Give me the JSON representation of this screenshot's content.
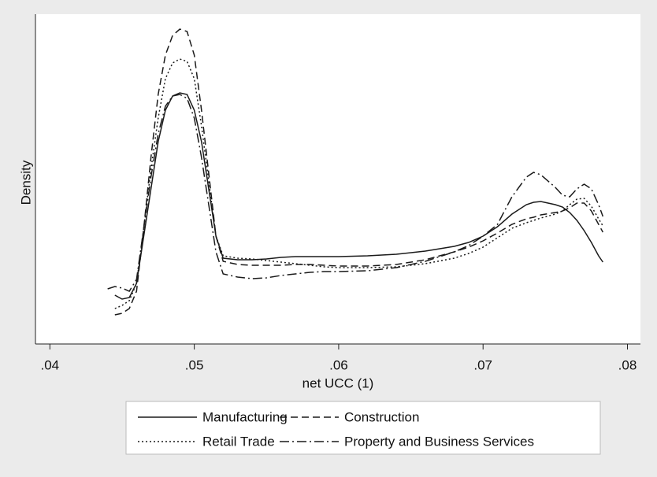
{
  "chart_data": {
    "type": "line",
    "x_label": "net UCC (1)",
    "y_label": "Density",
    "xlim": [
      0.039,
      0.0809
    ],
    "ylim": [
      0,
      104.75
    ],
    "xticks": [
      {
        "value": 0.04,
        "label": ".04"
      },
      {
        "value": 0.05,
        "label": ".05"
      },
      {
        "value": 0.06,
        "label": ".06"
      },
      {
        "value": 0.07,
        "label": ".07"
      },
      {
        "value": 0.08,
        "label": ".08"
      }
    ],
    "legend": "bottom",
    "x": [
      0.044,
      0.0445,
      0.045,
      0.0455,
      0.046,
      0.0465,
      0.047,
      0.0475,
      0.048,
      0.0485,
      0.049,
      0.0495,
      0.05,
      0.0505,
      0.051,
      0.0515,
      0.052,
      0.053,
      0.054,
      0.055,
      0.056,
      0.057,
      0.058,
      0.059,
      0.06,
      0.062,
      0.064,
      0.066,
      0.068,
      0.069,
      0.07,
      0.071,
      0.072,
      0.073,
      0.0735,
      0.074,
      0.075,
      0.0755,
      0.076,
      0.0765,
      0.077,
      0.0775,
      0.078,
      0.0783
    ],
    "series": [
      {
        "name": "Manufacturing",
        "color": "#1a1a1a",
        "dash": "none",
        "values": [
          null,
          15.5,
          14.25,
          14.75,
          19.25,
          34.25,
          49.25,
          64.25,
          74.25,
          78.75,
          79.75,
          79.25,
          74.25,
          64.25,
          49.25,
          34.25,
          27.25,
          26.75,
          26.75,
          27,
          27.5,
          27.75,
          27.75,
          27.75,
          27.75,
          28,
          28.5,
          29.5,
          31,
          32.25,
          34.25,
          37.25,
          41.25,
          44.25,
          45,
          45.25,
          44.25,
          43.5,
          41.75,
          39.25,
          36,
          32.25,
          28,
          26
        ]
      },
      {
        "name": "Construction",
        "color": "#1a1a1a",
        "dash": "9,5",
        "values": [
          null,
          9.25,
          9.75,
          11.25,
          16.75,
          36.75,
          59.25,
          79.25,
          91.75,
          98,
          100,
          99.25,
          91.75,
          74.25,
          54.25,
          34.25,
          26.25,
          25.25,
          25,
          25,
          25,
          25.25,
          25.25,
          25,
          24.75,
          24.75,
          25.25,
          26.75,
          29.25,
          30.75,
          32.75,
          35.25,
          38,
          39.75,
          40.25,
          41,
          41.75,
          42.25,
          43.25,
          44.75,
          44.75,
          42.25,
          38,
          35.5
        ]
      },
      {
        "name": "Retail Trade",
        "color": "#1a1a1a",
        "dash": "2,3",
        "values": [
          null,
          11.25,
          12.25,
          13.75,
          19.25,
          36.75,
          55.5,
          71.75,
          84.25,
          89.25,
          90.5,
          89.75,
          84.25,
          69.25,
          51.75,
          34.25,
          28,
          27.25,
          27,
          26.5,
          26,
          25.5,
          25,
          24.5,
          24.25,
          24.25,
          24.5,
          25.5,
          27.25,
          28.75,
          30.75,
          33.75,
          36.75,
          38.5,
          39.25,
          40,
          41.25,
          42.25,
          44.25,
          46,
          46.25,
          43.75,
          39.75,
          37.5
        ]
      },
      {
        "name": "Property and Business Services",
        "color": "#1a1a1a",
        "dash": "12,4,2,4",
        "values": [
          17.5,
          18.25,
          17.75,
          16.75,
          20.5,
          36.75,
          53,
          66.75,
          75.5,
          78.75,
          79.25,
          78,
          71.75,
          59.25,
          44.25,
          29.25,
          22.25,
          21.25,
          20.75,
          21,
          21.75,
          22.25,
          22.75,
          23,
          23,
          23.25,
          24.25,
          26.25,
          29.25,
          31.25,
          34.25,
          38,
          46.75,
          53,
          54.5,
          53.75,
          49.75,
          47.25,
          46.75,
          49.25,
          50.75,
          49.25,
          44.25,
          40.5
        ]
      }
    ]
  }
}
